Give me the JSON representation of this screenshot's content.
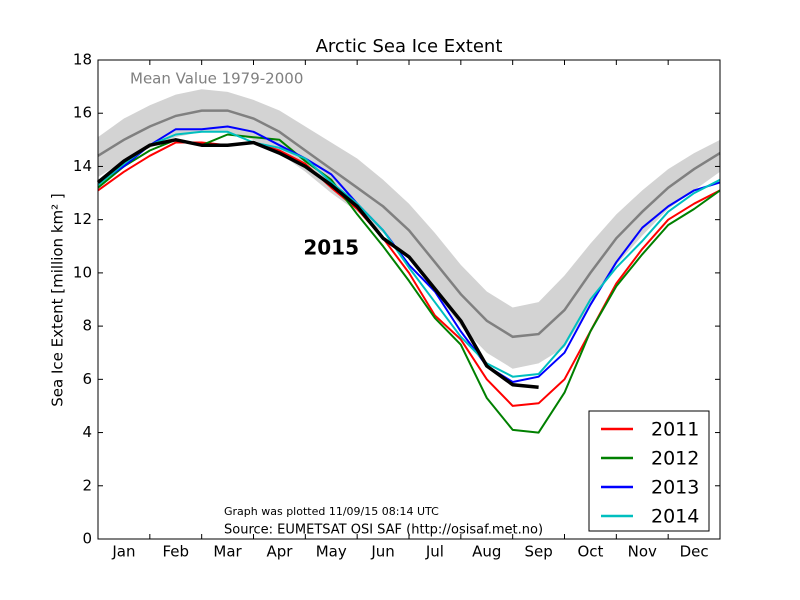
{
  "chart_data": {
    "type": "line",
    "title": "Arctic Sea Ice Extent",
    "ylabel": "Sea Ice Extent [million km² ]",
    "categories": [
      null,
      "Jan",
      null,
      "Feb",
      null,
      "Mar",
      null,
      "Apr",
      null,
      "May",
      null,
      "Jun",
      null,
      "Jul",
      null,
      "Aug",
      null,
      "Sep",
      null,
      "Oct",
      null,
      "Nov",
      null,
      "Dec",
      null
    ],
    "ylim": [
      0,
      18
    ],
    "yticks": [
      0,
      2,
      4,
      6,
      8,
      10,
      12,
      14,
      16,
      18
    ],
    "band": {
      "color": "#d3d3d3",
      "high": [
        15.1,
        15.8,
        16.3,
        16.7,
        16.9,
        16.8,
        16.5,
        16.1,
        15.5,
        14.9,
        14.3,
        13.5,
        12.6,
        11.5,
        10.3,
        9.3,
        8.7,
        8.9,
        9.9,
        11.1,
        12.2,
        13.1,
        13.9,
        14.5,
        15.0
      ],
      "low": [
        13.6,
        14.2,
        14.7,
        15.1,
        15.3,
        15.3,
        15.0,
        14.5,
        13.8,
        13.0,
        12.3,
        11.5,
        10.6,
        9.3,
        8.0,
        7.0,
        6.4,
        6.6,
        7.2,
        8.8,
        10.3,
        11.4,
        12.4,
        13.1,
        13.8
      ]
    },
    "mean": {
      "label": "Mean Value 1979-2000",
      "color": "#808080",
      "values": [
        14.4,
        15.0,
        15.5,
        15.9,
        16.1,
        16.1,
        15.8,
        15.3,
        14.6,
        13.9,
        13.2,
        12.5,
        11.6,
        10.4,
        9.2,
        8.2,
        7.6,
        7.7,
        8.6,
        10.0,
        11.3,
        12.3,
        13.2,
        13.9,
        14.5
      ]
    },
    "series": [
      {
        "name": "2011",
        "color": "#ff0000",
        "values": [
          13.1,
          13.8,
          14.4,
          14.9,
          14.9,
          14.8,
          14.9,
          14.6,
          14.1,
          13.2,
          12.4,
          11.3,
          10.0,
          8.4,
          7.5,
          6.0,
          5.0,
          5.1,
          6.0,
          7.8,
          9.6,
          10.9,
          12.0,
          12.6,
          13.1
        ]
      },
      {
        "name": "2012",
        "color": "#008000",
        "values": [
          13.2,
          14.0,
          14.6,
          15.0,
          14.8,
          15.2,
          15.1,
          15.0,
          14.2,
          13.5,
          12.2,
          11.0,
          9.7,
          8.3,
          7.3,
          5.3,
          4.1,
          4.0,
          5.5,
          7.8,
          9.5,
          10.7,
          11.8,
          12.4,
          13.1
        ]
      },
      {
        "name": "2013",
        "color": "#0000ff",
        "values": [
          13.4,
          14.0,
          14.8,
          15.4,
          15.4,
          15.5,
          15.3,
          14.8,
          14.3,
          13.7,
          12.6,
          11.6,
          10.3,
          9.3,
          7.8,
          6.5,
          5.9,
          6.1,
          7.0,
          8.8,
          10.4,
          11.7,
          12.5,
          13.1,
          13.4
        ]
      },
      {
        "name": "2014",
        "color": "#00bfbf",
        "values": [
          13.3,
          14.1,
          14.8,
          15.2,
          15.3,
          15.3,
          14.9,
          14.7,
          14.3,
          13.4,
          12.6,
          11.6,
          10.2,
          8.9,
          7.6,
          6.6,
          6.1,
          6.2,
          7.3,
          9.0,
          10.2,
          11.2,
          12.3,
          13.0,
          13.5
        ]
      },
      {
        "name": "2015",
        "color": "#000000",
        "in_legend": false,
        "values": [
          13.4,
          14.2,
          14.8,
          15.0,
          14.8,
          14.8,
          14.9,
          14.5,
          14.0,
          13.3,
          12.5,
          11.3,
          10.6,
          9.4,
          8.2,
          6.5,
          5.8,
          5.7,
          null,
          null,
          null,
          null,
          null,
          null,
          null
        ]
      }
    ],
    "legend": "lower right",
    "annotations": [
      "Graph was plotted 11/09/15 08:14 UTC",
      "Source: EUMETSAT OSI SAF (http://osisaf.met.no)"
    ]
  }
}
